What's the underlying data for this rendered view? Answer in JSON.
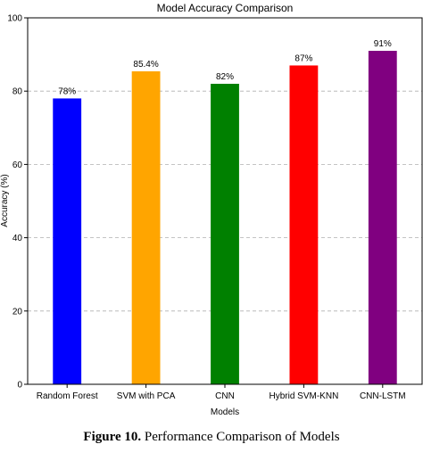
{
  "chart_data": {
    "type": "bar",
    "title": "Model Accuracy Comparison",
    "xlabel": "Models",
    "ylabel": "Accuracy (%)",
    "categories": [
      "Random Forest",
      "SVM with PCA",
      "CNN",
      "Hybrid SVM-KNN",
      "CNN-LSTM"
    ],
    "values": [
      78,
      85.4,
      82,
      87,
      91
    ],
    "value_labels": [
      "78%",
      "85.4%",
      "82%",
      "87%",
      "91%"
    ],
    "colors": [
      "#0000ff",
      "#ffa500",
      "#008000",
      "#ff0000",
      "#800080"
    ],
    "ylim": [
      0,
      100
    ],
    "yticks": [
      0,
      20,
      40,
      60,
      80,
      100
    ],
    "grid": true,
    "legend": false
  },
  "caption": {
    "label": "Figure 10.",
    "text": "Performance Comparison of Models"
  }
}
